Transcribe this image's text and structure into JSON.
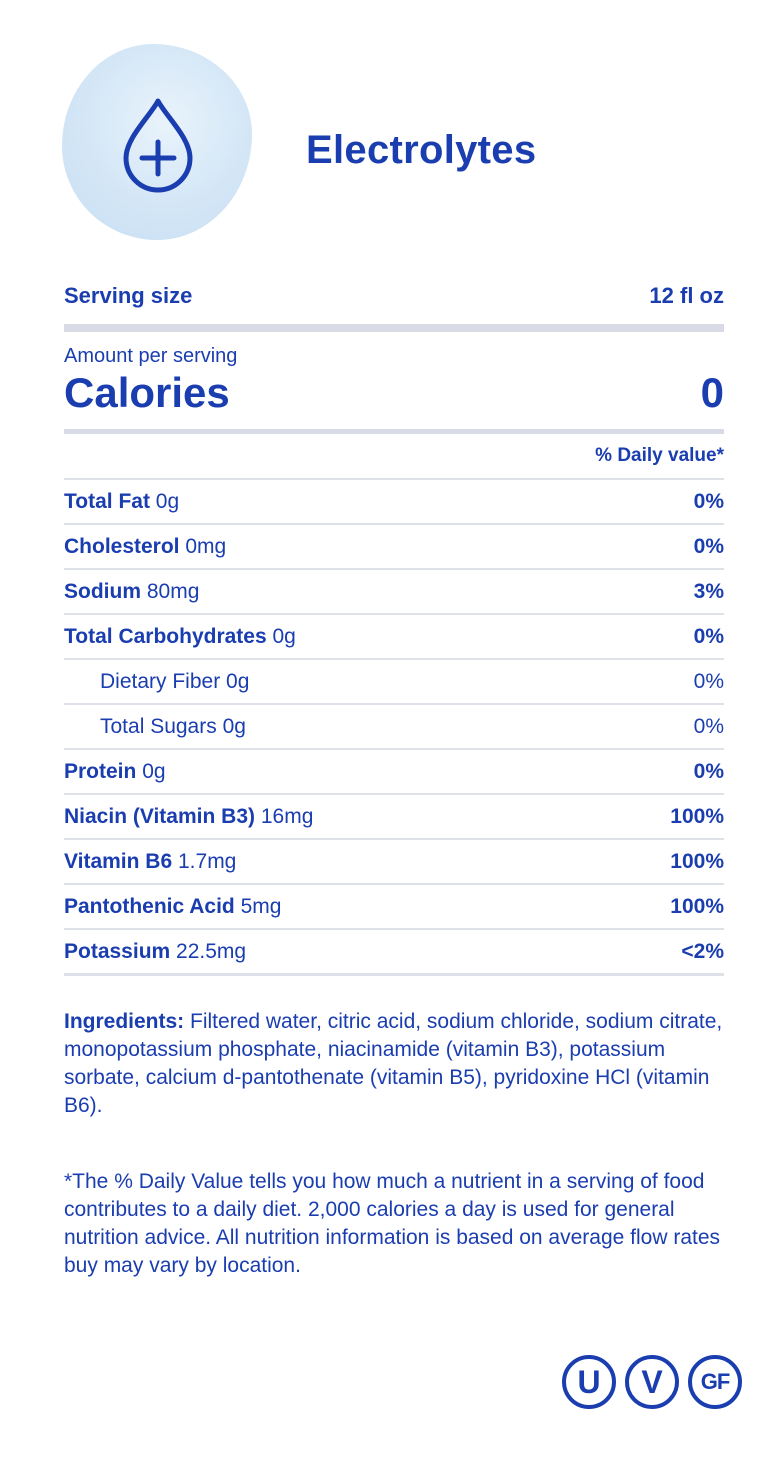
{
  "header": {
    "icon": "water-drop-plus-icon",
    "title": "Electrolytes"
  },
  "serving": {
    "label": "Serving size",
    "value": "12 fl oz"
  },
  "amount_per_serving": "Amount per serving",
  "calories": {
    "label": "Calories",
    "value": "0"
  },
  "daily_value_header": "% Daily value*",
  "nutrients": [
    {
      "name": "Total Fat",
      "amount": "0g",
      "pct": "0%",
      "sub": false
    },
    {
      "name": "Cholesterol",
      "amount": "0mg",
      "pct": "0%",
      "sub": false
    },
    {
      "name": "Sodium",
      "amount": "80mg",
      "pct": "3%",
      "sub": false
    },
    {
      "name": "Total Carbohydrates",
      "amount": "0g",
      "pct": "0%",
      "sub": false
    },
    {
      "name": "Dietary Fiber",
      "amount": "0g",
      "pct": "0%",
      "sub": true
    },
    {
      "name": "Total Sugars",
      "amount": "0g",
      "pct": "0%",
      "sub": true
    },
    {
      "name": "Protein",
      "amount": "0g",
      "pct": "0%",
      "sub": false
    },
    {
      "name": "Niacin (Vitamin B3)",
      "amount": "16mg",
      "pct": "100%",
      "sub": false
    },
    {
      "name": "Vitamin B6",
      "amount": "1.7mg",
      "pct": "100%",
      "sub": false
    },
    {
      "name": "Pantothenic Acid",
      "amount": "5mg",
      "pct": "100%",
      "sub": false
    },
    {
      "name": "Potassium",
      "amount": "22.5mg",
      "pct": "<2%",
      "sub": false
    }
  ],
  "ingredients": {
    "label": "Ingredients:",
    "text": " Filtered water, citric acid, sodium chloride, sodium citrate, monopotassium phosphate, niacinamide (vitamin B3), potassium sorbate, calcium d-pantothenate (vitamin B5), pyridoxine HCl (vitamin B6)."
  },
  "footnote": "*The % Daily Value tells you how much a nutrient in a serving of food contributes to a daily diet. 2,000 calories a day is used for general nutrition advice. All nutrition information is based on average flow rates buy may vary by location.",
  "badges": [
    {
      "name": "kosher-u-badge",
      "text": "U"
    },
    {
      "name": "vegan-badge",
      "text": "V"
    },
    {
      "name": "gluten-free-badge",
      "text": "GF"
    }
  ],
  "colors": {
    "primary": "#1a3db0",
    "divider": "#d8dbe6",
    "icon_bg": "#d3e6f6"
  }
}
